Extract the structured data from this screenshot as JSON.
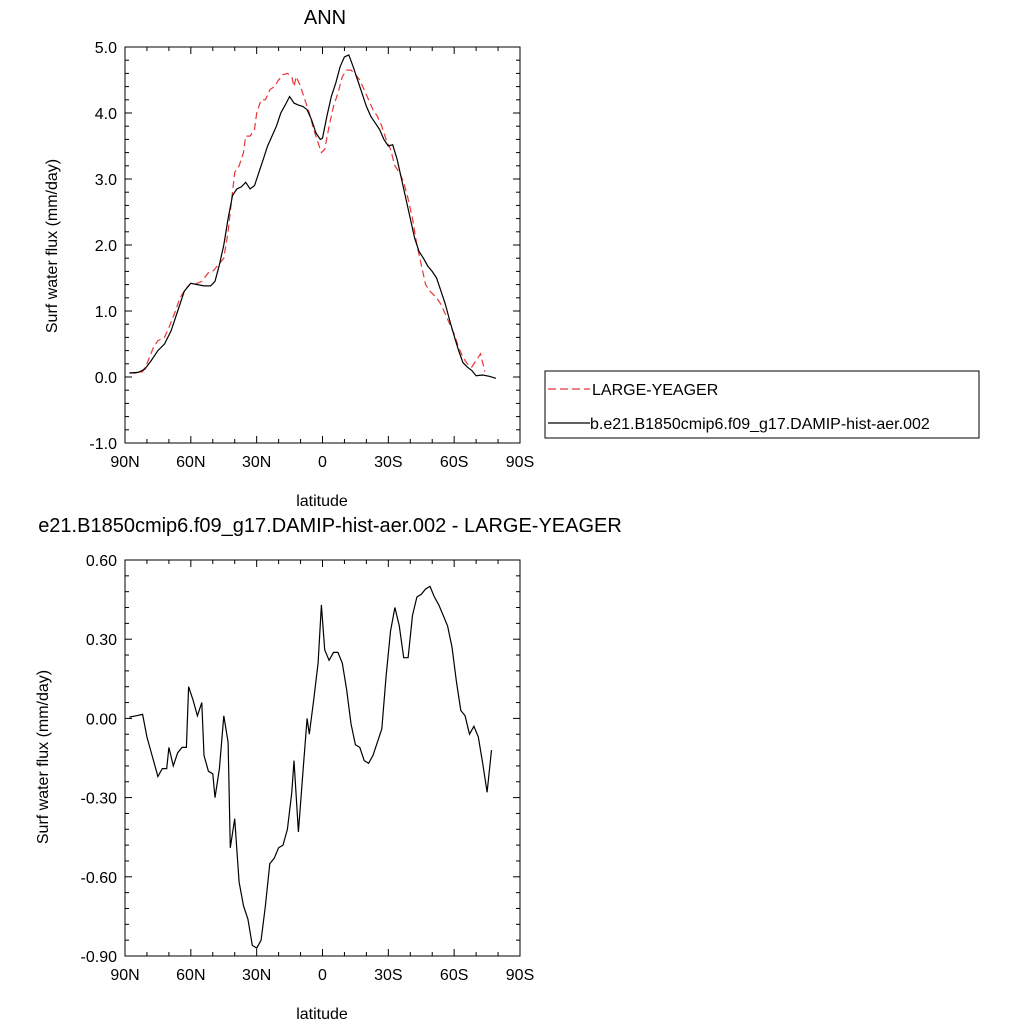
{
  "chart_data": [
    {
      "type": "line",
      "title": "ANN",
      "xlabel": "latitude",
      "ylabel": "Surf water flux (mm/day)",
      "xlim": [
        90,
        -90
      ],
      "ylim": [
        -1.0,
        5.0
      ],
      "x_ticks": [
        90,
        60,
        30,
        0,
        -30,
        -60,
        -90
      ],
      "x_tick_labels": [
        "90N",
        "60N",
        "30N",
        "0",
        "30S",
        "60S",
        "90S"
      ],
      "y_ticks": [
        -1.0,
        0.0,
        1.0,
        2.0,
        3.0,
        4.0,
        5.0
      ],
      "y_tick_labels": [
        "-1.0",
        "0.0",
        "1.0",
        "2.0",
        "3.0",
        "4.0",
        "5.0"
      ],
      "grid": false,
      "legend_position": "right",
      "series": [
        {
          "name": "LARGE-YEAGER",
          "color": "#e8363a",
          "dash": "dashed",
          "points": [
            [
              88,
              0.06
            ],
            [
              85,
              0.06
            ],
            [
              82,
              0.08
            ],
            [
              80,
              0.2
            ],
            [
              77,
              0.45
            ],
            [
              75,
              0.55
            ],
            [
              72,
              0.6
            ],
            [
              70,
              0.75
            ],
            [
              67,
              1.0
            ],
            [
              65,
              1.2
            ],
            [
              62,
              1.35
            ],
            [
              60,
              1.42
            ],
            [
              57,
              1.42
            ],
            [
              55,
              1.45
            ],
            [
              52,
              1.58
            ],
            [
              50,
              1.6
            ],
            [
              47,
              1.72
            ],
            [
              45,
              1.8
            ],
            [
              43,
              2.2
            ],
            [
              41,
              2.8
            ],
            [
              40,
              3.1
            ],
            [
              38,
              3.2
            ],
            [
              36,
              3.4
            ],
            [
              35,
              3.65
            ],
            [
              33,
              3.65
            ],
            [
              31,
              3.75
            ],
            [
              30,
              4.0
            ],
            [
              28,
              4.2
            ],
            [
              26,
              4.2
            ],
            [
              24,
              4.35
            ],
            [
              22,
              4.4
            ],
            [
              20,
              4.5
            ],
            [
              18,
              4.58
            ],
            [
              16,
              4.6
            ],
            [
              14,
              4.55
            ],
            [
              13,
              4.4
            ],
            [
              12,
              4.55
            ],
            [
              10,
              4.4
            ],
            [
              8,
              4.2
            ],
            [
              6,
              4.0
            ],
            [
              4,
              3.75
            ],
            [
              2,
              3.55
            ],
            [
              0.5,
              3.4
            ],
            [
              -1,
              3.45
            ],
            [
              -3,
              3.8
            ],
            [
              -5,
              4.1
            ],
            [
              -7,
              4.3
            ],
            [
              -9,
              4.55
            ],
            [
              -11,
              4.65
            ],
            [
              -13,
              4.65
            ],
            [
              -15,
              4.58
            ],
            [
              -17,
              4.5
            ],
            [
              -19,
              4.35
            ],
            [
              -21,
              4.2
            ],
            [
              -23,
              4.05
            ],
            [
              -25,
              3.95
            ],
            [
              -27,
              3.8
            ],
            [
              -29,
              3.6
            ],
            [
              -31,
              3.45
            ],
            [
              -33,
              3.2
            ],
            [
              -35,
              3.1
            ],
            [
              -37,
              2.95
            ],
            [
              -39,
              2.7
            ],
            [
              -41,
              2.4
            ],
            [
              -43,
              2.0
            ],
            [
              -45,
              1.7
            ],
            [
              -47,
              1.4
            ],
            [
              -49,
              1.3
            ],
            [
              -52,
              1.2
            ],
            [
              -54,
              1.1
            ],
            [
              -56,
              0.95
            ],
            [
              -58,
              0.8
            ],
            [
              -60,
              0.65
            ],
            [
              -62,
              0.45
            ],
            [
              -64,
              0.3
            ],
            [
              -66,
              0.2
            ],
            [
              -68,
              0.15
            ],
            [
              -70,
              0.25
            ],
            [
              -72,
              0.35
            ],
            [
              -74,
              0.08
            ]
          ]
        },
        {
          "name": "b.e21.B1850cmip6.f09_g17.DAMIP-hist-aer.002",
          "color": "#000000",
          "dash": "solid",
          "points": [
            [
              88,
              0.06
            ],
            [
              84,
              0.07
            ],
            [
              81,
              0.12
            ],
            [
              78,
              0.25
            ],
            [
              75,
              0.4
            ],
            [
              72,
              0.5
            ],
            [
              69,
              0.7
            ],
            [
              66,
              1.0
            ],
            [
              63,
              1.3
            ],
            [
              60,
              1.42
            ],
            [
              57,
              1.4
            ],
            [
              54,
              1.38
            ],
            [
              51,
              1.38
            ],
            [
              49,
              1.45
            ],
            [
              47,
              1.7
            ],
            [
              45,
              2.0
            ],
            [
              43,
              2.4
            ],
            [
              41,
              2.75
            ],
            [
              39,
              2.85
            ],
            [
              37,
              2.88
            ],
            [
              35,
              2.95
            ],
            [
              33,
              2.85
            ],
            [
              31,
              2.9
            ],
            [
              29,
              3.1
            ],
            [
              27,
              3.3
            ],
            [
              25,
              3.5
            ],
            [
              23,
              3.65
            ],
            [
              21,
              3.8
            ],
            [
              19,
              4.0
            ],
            [
              17,
              4.12
            ],
            [
              15,
              4.25
            ],
            [
              13,
              4.15
            ],
            [
              11,
              4.12
            ],
            [
              9,
              4.1
            ],
            [
              7,
              4.05
            ],
            [
              5,
              3.9
            ],
            [
              3,
              3.7
            ],
            [
              1,
              3.6
            ],
            [
              0,
              3.62
            ],
            [
              -2,
              3.95
            ],
            [
              -4,
              4.25
            ],
            [
              -6,
              4.45
            ],
            [
              -8,
              4.7
            ],
            [
              -10,
              4.85
            ],
            [
              -12,
              4.88
            ],
            [
              -14,
              4.7
            ],
            [
              -16,
              4.5
            ],
            [
              -18,
              4.3
            ],
            [
              -20,
              4.1
            ],
            [
              -22,
              3.95
            ],
            [
              -24,
              3.85
            ],
            [
              -26,
              3.75
            ],
            [
              -28,
              3.6
            ],
            [
              -30,
              3.5
            ],
            [
              -32,
              3.52
            ],
            [
              -34,
              3.3
            ],
            [
              -36,
              3.0
            ],
            [
              -38,
              2.7
            ],
            [
              -40,
              2.4
            ],
            [
              -42,
              2.1
            ],
            [
              -44,
              1.9
            ],
            [
              -46,
              1.8
            ],
            [
              -48,
              1.68
            ],
            [
              -50,
              1.6
            ],
            [
              -52,
              1.5
            ],
            [
              -54,
              1.3
            ],
            [
              -56,
              1.1
            ],
            [
              -58,
              0.85
            ],
            [
              -60,
              0.62
            ],
            [
              -62,
              0.4
            ],
            [
              -64,
              0.22
            ],
            [
              -66,
              0.15
            ],
            [
              -68,
              0.1
            ],
            [
              -70,
              0.02
            ],
            [
              -73,
              0.03
            ],
            [
              -76,
              0.01
            ],
            [
              -79,
              -0.02
            ]
          ]
        }
      ]
    },
    {
      "type": "line",
      "title": "e21.B1850cmip6.f09_g17.DAMIP-hist-aer.002 - LARGE-YEAGER",
      "xlabel": "latitude",
      "ylabel": "Surf water flux (mm/day)",
      "xlim": [
        90,
        -90
      ],
      "ylim": [
        -0.9,
        0.6
      ],
      "x_ticks": [
        90,
        60,
        30,
        0,
        -30,
        -60,
        -90
      ],
      "x_tick_labels": [
        "90N",
        "60N",
        "30N",
        "0",
        "30S",
        "60S",
        "90S"
      ],
      "y_ticks": [
        -0.9,
        -0.6,
        -0.3,
        0.0,
        0.3,
        0.6
      ],
      "y_tick_labels": [
        "-0.90",
        "-0.60",
        "-0.30",
        "0.00",
        "0.30",
        "0.60"
      ],
      "grid": false,
      "series": [
        {
          "color": "#000000",
          "dash": "solid",
          "points": [
            [
              88,
              0.005
            ],
            [
              85,
              0.01
            ],
            [
              82,
              0.015
            ],
            [
              80,
              -0.07
            ],
            [
              77,
              -0.16
            ],
            [
              75,
              -0.22
            ],
            [
              73,
              -0.19
            ],
            [
              71,
              -0.19
            ],
            [
              70,
              -0.11
            ],
            [
              68,
              -0.18
            ],
            [
              66,
              -0.13
            ],
            [
              64,
              -0.11
            ],
            [
              62,
              -0.11
            ],
            [
              61,
              0.12
            ],
            [
              59,
              0.07
            ],
            [
              57,
              0.01
            ],
            [
              55,
              0.06
            ],
            [
              54,
              -0.14
            ],
            [
              52,
              -0.2
            ],
            [
              50,
              -0.21
            ],
            [
              49,
              -0.3
            ],
            [
              47,
              -0.19
            ],
            [
              45,
              0.01
            ],
            [
              43,
              -0.09
            ],
            [
              42,
              -0.49
            ],
            [
              40,
              -0.38
            ],
            [
              38,
              -0.62
            ],
            [
              36,
              -0.71
            ],
            [
              34,
              -0.76
            ],
            [
              32,
              -0.86
            ],
            [
              30,
              -0.87
            ],
            [
              28,
              -0.84
            ],
            [
              26,
              -0.71
            ],
            [
              24,
              -0.55
            ],
            [
              22,
              -0.53
            ],
            [
              20,
              -0.49
            ],
            [
              18,
              -0.48
            ],
            [
              16,
              -0.42
            ],
            [
              14,
              -0.28
            ],
            [
              13,
              -0.16
            ],
            [
              11,
              -0.43
            ],
            [
              9,
              -0.21
            ],
            [
              7,
              0.0
            ],
            [
              6,
              -0.06
            ],
            [
              4,
              0.07
            ],
            [
              2,
              0.21
            ],
            [
              0.5,
              0.43
            ],
            [
              -1,
              0.26
            ],
            [
              -3,
              0.22
            ],
            [
              -5,
              0.25
            ],
            [
              -7,
              0.25
            ],
            [
              -9,
              0.21
            ],
            [
              -11,
              0.11
            ],
            [
              -13,
              -0.02
            ],
            [
              -15,
              -0.1
            ],
            [
              -17,
              -0.11
            ],
            [
              -19,
              -0.16
            ],
            [
              -21,
              -0.17
            ],
            [
              -23,
              -0.14
            ],
            [
              -25,
              -0.09
            ],
            [
              -27,
              -0.04
            ],
            [
              -29,
              0.16
            ],
            [
              -31,
              0.33
            ],
            [
              -33,
              0.42
            ],
            [
              -35,
              0.35
            ],
            [
              -37,
              0.23
            ],
            [
              -39,
              0.23
            ],
            [
              -41,
              0.39
            ],
            [
              -43,
              0.46
            ],
            [
              -45,
              0.47
            ],
            [
              -47,
              0.49
            ],
            [
              -49,
              0.5
            ],
            [
              -51,
              0.46
            ],
            [
              -53,
              0.43
            ],
            [
              -55,
              0.39
            ],
            [
              -57,
              0.35
            ],
            [
              -59,
              0.27
            ],
            [
              -61,
              0.14
            ],
            [
              -63,
              0.03
            ],
            [
              -65,
              0.01
            ],
            [
              -67,
              -0.06
            ],
            [
              -69,
              -0.03
            ],
            [
              -71,
              -0.07
            ],
            [
              -73,
              -0.17
            ],
            [
              -75,
              -0.28
            ],
            [
              -77,
              -0.12
            ]
          ]
        }
      ]
    }
  ],
  "legend": {
    "items": [
      {
        "label": "LARGE-YEAGER",
        "color": "#e8363a",
        "dash": "dashed"
      },
      {
        "label": "b.e21.B1850cmip6.f09_g17.DAMIP-hist-aer.002",
        "color": "#000000",
        "dash": "solid"
      }
    ]
  }
}
